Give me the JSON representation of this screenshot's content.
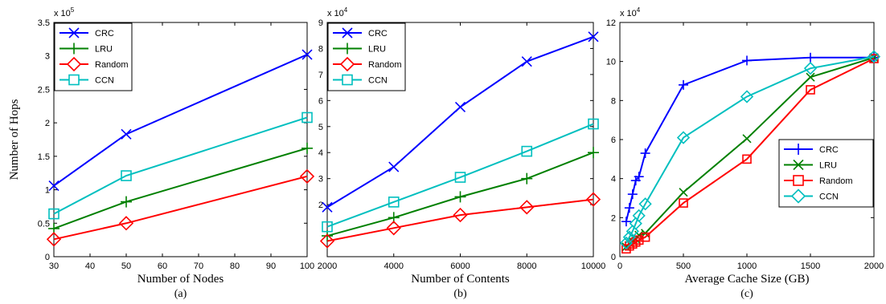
{
  "chart_data": [
    {
      "type": "line",
      "panel_label": "(a)",
      "xlabel": "Number of Nodes",
      "ylabel": "Number of Hops",
      "y_exponent": "x 10",
      "y_exponent_power": "5",
      "x": [
        30,
        50,
        100
      ],
      "xlim": [
        30,
        100
      ],
      "xticks": [
        30,
        40,
        50,
        60,
        70,
        80,
        90,
        100
      ],
      "ylim": [
        0,
        3.5
      ],
      "yticks": [
        0,
        0.5,
        1,
        1.5,
        2,
        2.5,
        3,
        3.5
      ],
      "ytick_labels": [
        "0",
        "0.5",
        "1",
        "1.5",
        "2",
        "2.5",
        "3",
        "3.5"
      ],
      "legend": "top-left",
      "grid": false,
      "series": [
        {
          "name": "CRC",
          "values": [
            1.06,
            1.83,
            3.02
          ],
          "color": "#0000ff",
          "marker": "x"
        },
        {
          "name": "LRU",
          "values": [
            0.42,
            0.82,
            1.62
          ],
          "color": "#008000",
          "marker": "+"
        },
        {
          "name": "Random",
          "values": [
            0.26,
            0.5,
            1.2
          ],
          "color": "#ff0000",
          "marker": "diamond"
        },
        {
          "name": "CCN",
          "values": [
            0.64,
            1.21,
            2.08
          ],
          "color": "#00bfbf",
          "marker": "square"
        }
      ]
    },
    {
      "type": "line",
      "panel_label": "(b)",
      "xlabel": "Number of Contents",
      "ylabel": "",
      "y_exponent": "x 10",
      "y_exponent_power": "4",
      "x": [
        2000,
        4000,
        6000,
        8000,
        10000
      ],
      "xlim": [
        2000,
        10000
      ],
      "xticks": [
        2000,
        4000,
        6000,
        8000,
        10000
      ],
      "ylim": [
        0,
        9
      ],
      "yticks": [
        2,
        3,
        4,
        5,
        6,
        7,
        8,
        9
      ],
      "ytick_labels": [
        "2",
        "3",
        "4",
        "5",
        "6",
        "7",
        "8",
        "9"
      ],
      "legend": "top-left",
      "grid": false,
      "series": [
        {
          "name": "CRC",
          "values": [
            1.9,
            3.45,
            5.75,
            7.5,
            8.45
          ],
          "color": "#0000ff",
          "marker": "x"
        },
        {
          "name": "LRU",
          "values": [
            0.8,
            1.5,
            2.3,
            3.0,
            4.0
          ],
          "color": "#008000",
          "marker": "+"
        },
        {
          "name": "Random",
          "values": [
            0.6,
            1.1,
            1.6,
            1.9,
            2.2
          ],
          "color": "#ff0000",
          "marker": "diamond"
        },
        {
          "name": "CCN",
          "values": [
            1.15,
            2.1,
            3.05,
            4.05,
            5.1
          ],
          "color": "#00bfbf",
          "marker": "square"
        }
      ]
    },
    {
      "type": "line",
      "panel_label": "(c)",
      "xlabel": "Average Cache Size (GB)",
      "ylabel": "",
      "y_exponent": "x 10",
      "y_exponent_power": "4",
      "x": [
        50,
        75,
        100,
        125,
        150,
        200,
        500,
        1000,
        1500,
        2000
      ],
      "xlim": [
        0,
        2000
      ],
      "xticks": [
        0,
        500,
        1000,
        1500,
        2000
      ],
      "ylim": [
        0,
        12
      ],
      "yticks": [
        0,
        2,
        4,
        6,
        8,
        10,
        12
      ],
      "ytick_labels": [
        "0",
        "2",
        "4",
        "6",
        "8",
        "10",
        "12"
      ],
      "legend": "middle-right",
      "grid": false,
      "series": [
        {
          "name": "CRC",
          "values": [
            1.8,
            2.5,
            3.2,
            3.9,
            4.1,
            5.3,
            8.8,
            10.05,
            10.2,
            10.2
          ],
          "color": "#0000ff",
          "marker": "+"
        },
        {
          "name": "LRU",
          "values": [
            0.5,
            0.7,
            0.8,
            0.9,
            1.1,
            1.2,
            3.3,
            6.05,
            9.2,
            10.2
          ],
          "color": "#008000",
          "marker": "x"
        },
        {
          "name": "Random",
          "values": [
            0.4,
            0.55,
            0.65,
            0.75,
            0.85,
            1.0,
            2.75,
            5.0,
            8.55,
            10.15
          ],
          "color": "#ff0000",
          "marker": "square"
        },
        {
          "name": "CCN",
          "values": [
            0.7,
            1.0,
            1.3,
            1.7,
            2.1,
            2.7,
            6.1,
            8.2,
            9.65,
            10.25
          ],
          "color": "#00bfbf",
          "marker": "diamond"
        }
      ]
    }
  ]
}
